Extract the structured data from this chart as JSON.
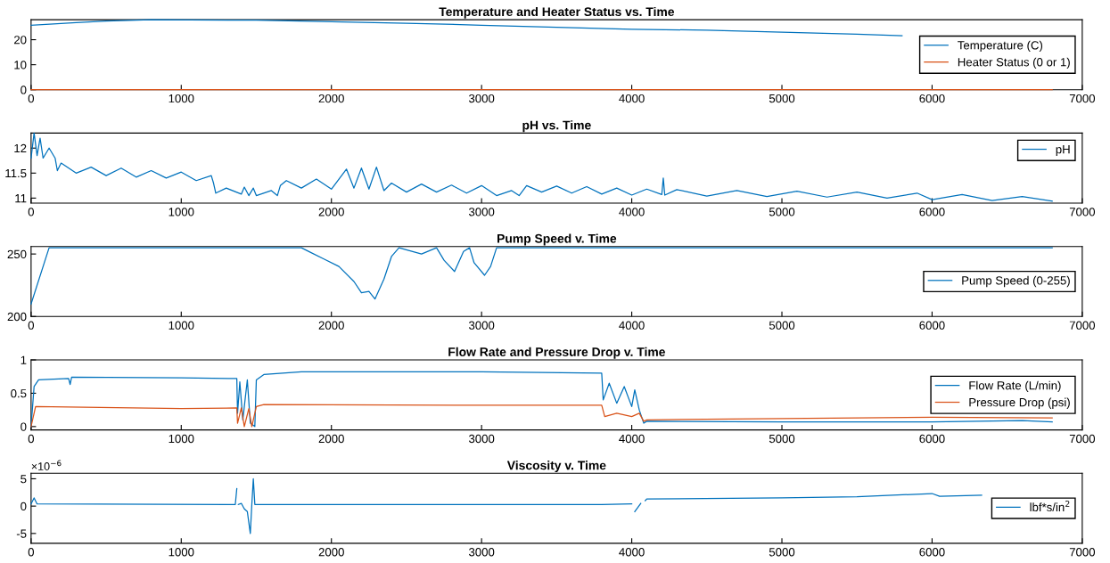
{
  "chart_data": [
    {
      "type": "line",
      "title": "Temperature and Heater Status vs. Time",
      "xlim": [
        0,
        7000
      ],
      "xticks": [
        0,
        1000,
        2000,
        3000,
        4000,
        5000,
        6000,
        7000
      ],
      "ylim": [
        0,
        28
      ],
      "yticks": [
        0,
        10,
        20
      ],
      "legend": "right",
      "series": [
        {
          "name": "Temperature (C)",
          "color": "#0072bd",
          "x": [
            0,
            300,
            500,
            800,
            1500,
            2000,
            2500,
            3000,
            3500,
            4000,
            4500,
            5000,
            5500,
            5800
          ],
          "values": [
            25.8,
            26.8,
            27.5,
            28,
            27.8,
            27.2,
            26.6,
            25.8,
            25,
            24.2,
            23.8,
            23,
            22.2,
            21.6
          ]
        },
        {
          "name": "Heater Status (0 or 1)",
          "color": "#d95319",
          "x": [
            0,
            6800
          ],
          "values": [
            0,
            0
          ]
        }
      ]
    },
    {
      "type": "line",
      "title": "pH vs. Time",
      "xlim": [
        0,
        7000
      ],
      "xticks": [
        0,
        1000,
        2000,
        3000,
        4000,
        5000,
        6000,
        7000
      ],
      "ylim": [
        10.9,
        12.3
      ],
      "yticks": [
        11,
        11.5,
        12
      ],
      "legend": "top right",
      "series": [
        {
          "name": "pH",
          "color": "#0072bd",
          "x": [
            0,
            20,
            40,
            60,
            80,
            120,
            160,
            175,
            200,
            300,
            400,
            500,
            600,
            700,
            800,
            900,
            1000,
            1100,
            1200,
            1215,
            1230,
            1300,
            1400,
            1420,
            1450,
            1480,
            1500,
            1600,
            1640,
            1660,
            1700,
            1800,
            1900,
            2000,
            2100,
            2150,
            2200,
            2250,
            2300,
            2350,
            2400,
            2500,
            2600,
            2700,
            2800,
            2900,
            3000,
            3100,
            3200,
            3250,
            3300,
            3400,
            3500,
            3600,
            3700,
            3800,
            3900,
            4000,
            4100,
            4200,
            4210,
            4220,
            4300,
            4500,
            4700,
            4900,
            5100,
            5300,
            5500,
            5700,
            5900,
            6000,
            6200,
            6400,
            6600,
            6800
          ],
          "values": [
            11.8,
            12.3,
            11.85,
            12.2,
            11.8,
            12.0,
            11.8,
            11.55,
            11.7,
            11.5,
            11.62,
            11.45,
            11.6,
            11.42,
            11.55,
            11.4,
            11.52,
            11.35,
            11.45,
            11.3,
            11.1,
            11.2,
            11.08,
            11.22,
            11.05,
            11.2,
            11.05,
            11.15,
            11.05,
            11.25,
            11.35,
            11.2,
            11.38,
            11.18,
            11.58,
            11.2,
            11.6,
            11.18,
            11.62,
            11.15,
            11.3,
            11.12,
            11.28,
            11.12,
            11.26,
            11.1,
            11.25,
            11.05,
            11.15,
            11.05,
            11.25,
            11.12,
            11.24,
            11.1,
            11.23,
            11.08,
            11.2,
            11.06,
            11.18,
            11.07,
            11.4,
            11.06,
            11.17,
            11.04,
            11.15,
            11.03,
            11.14,
            11.02,
            11.12,
            11.0,
            11.1,
            10.97,
            11.07,
            10.95,
            11.03,
            10.94
          ]
        }
      ]
    },
    {
      "type": "line",
      "title": "Pump Speed v. Time",
      "xlim": [
        0,
        7000
      ],
      "xticks": [
        0,
        1000,
        2000,
        3000,
        4000,
        5000,
        6000,
        7000
      ],
      "ylim": [
        200,
        256
      ],
      "yticks": [
        200,
        250
      ],
      "legend": "right",
      "series": [
        {
          "name": "Pump Speed (0-255)",
          "color": "#0072bd",
          "x": [
            0,
            120,
            1800,
            1850,
            1950,
            2050,
            2150,
            2200,
            2250,
            2290,
            2350,
            2400,
            2450,
            2600,
            2700,
            2750,
            2820,
            2880,
            2920,
            2950,
            3020,
            3060,
            3100,
            6800
          ],
          "values": [
            210,
            255,
            255,
            252,
            246,
            240,
            228,
            219,
            220,
            214,
            230,
            248,
            255,
            250,
            255,
            245,
            236,
            252,
            255,
            243,
            233,
            240,
            255,
            255
          ]
        }
      ]
    },
    {
      "type": "line",
      "title": "Flow Rate and Pressure Drop v. Time",
      "xlim": [
        0,
        7000
      ],
      "xticks": [
        0,
        1000,
        2000,
        3000,
        4000,
        5000,
        6000,
        7000
      ],
      "ylim": [
        -0.05,
        1
      ],
      "yticks": [
        0,
        0.5,
        1
      ],
      "legend": "right",
      "series": [
        {
          "name": "Flow Rate (L/min)",
          "color": "#0072bd",
          "x": [
            0,
            20,
            50,
            250,
            260,
            270,
            1000,
            1370,
            1375,
            1390,
            1410,
            1440,
            1460,
            1490,
            1500,
            1550,
            1800,
            3000,
            3800,
            3810,
            3850,
            3900,
            3950,
            4000,
            4020,
            4050,
            4080,
            4100,
            5000,
            6000,
            6600,
            6800
          ],
          "values": [
            0,
            0.6,
            0.7,
            0.72,
            0.63,
            0.74,
            0.73,
            0.72,
            0.2,
            0.67,
            0.1,
            0.7,
            0.05,
            0.0,
            0.7,
            0.78,
            0.82,
            0.82,
            0.8,
            0.4,
            0.65,
            0.35,
            0.6,
            0.3,
            0.55,
            0.25,
            0.05,
            0.08,
            0.07,
            0.07,
            0.09,
            0.07
          ]
        },
        {
          "name": "Pressure Drop (psi)",
          "color": "#d95319",
          "x": [
            0,
            30,
            1000,
            1370,
            1375,
            1400,
            1420,
            1450,
            1470,
            1500,
            1550,
            3000,
            3800,
            3820,
            3900,
            4000,
            4050,
            4080,
            4100,
            5000,
            6000,
            6800
          ],
          "values": [
            0,
            0.3,
            0.27,
            0.28,
            0.05,
            0.28,
            0.0,
            0.27,
            0.0,
            0.3,
            0.33,
            0.32,
            0.32,
            0.15,
            0.2,
            0.15,
            0.2,
            0.08,
            0.1,
            0.12,
            0.14,
            0.13
          ]
        }
      ]
    },
    {
      "type": "line",
      "title": "Viscosity v. Time",
      "annotations": [
        "×10$^{−6}$"
      ],
      "xlim": [
        0,
        7000
      ],
      "xticks": [
        0,
        1000,
        2000,
        3000,
        4000,
        5000,
        6000,
        7000
      ],
      "ylim": [
        -6.8,
        6
      ],
      "yticks": [
        -5,
        0,
        5
      ],
      "legend": "right",
      "series": [
        {
          "name": "lbf*s/in$^{2}$",
          "color": "#0072bd",
          "x": [
            0,
            20,
            40,
            1360,
            1370,
            1375,
            1380,
            1400,
            1420,
            1440,
            1460,
            1470,
            1480,
            1490,
            3800,
            4000,
            4010,
            4020,
            4060,
            4080,
            4090,
            4100,
            5000,
            5500,
            6000,
            6050,
            6330
          ],
          "values": [
            0.4,
            1.5,
            0.4,
            0.3,
            3.2,
            null,
            0.3,
            0.5,
            -0.5,
            -1,
            -5,
            0.3,
            5,
            0.3,
            0.3,
            0.4,
            null,
            -1,
            0.5,
            null,
            1,
            1.3,
            1.5,
            1.7,
            2.3,
            1.8,
            2
          ]
        }
      ]
    }
  ]
}
